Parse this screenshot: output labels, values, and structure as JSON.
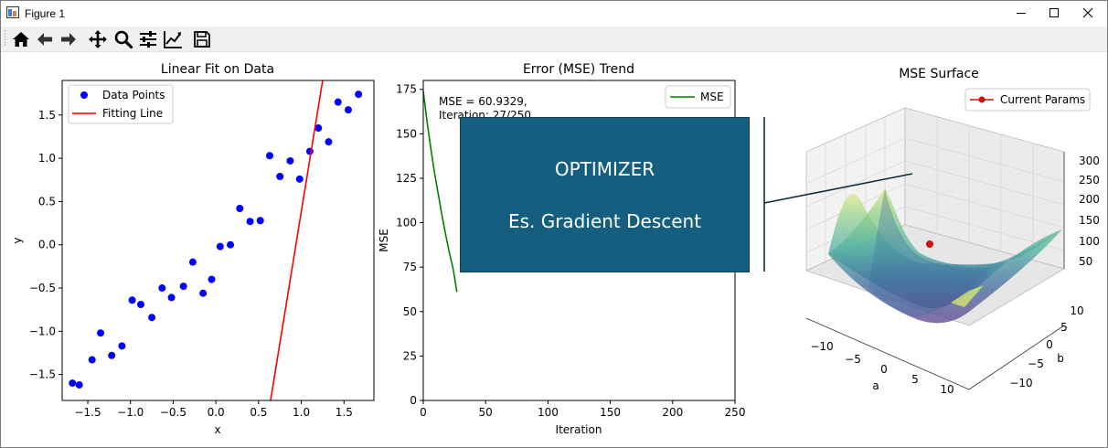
{
  "window": {
    "title": "Figure 1"
  },
  "toolbar": {
    "buttons": [
      {
        "icon": "home-icon"
      },
      {
        "icon": "back-arrow-icon"
      },
      {
        "icon": "forward-arrow-icon"
      },
      {
        "icon": "pan-icon"
      },
      {
        "icon": "zoom-icon"
      },
      {
        "icon": "configure-subplots-icon"
      },
      {
        "icon": "edit-axis-icon"
      },
      {
        "icon": "save-icon"
      }
    ]
  },
  "overlay": {
    "line1": "OPTIMIZER",
    "line2": "Es. Gradient Descent",
    "color": "#155e80"
  },
  "chart_data": [
    {
      "type": "scatter",
      "title": "Linear Fit on Data",
      "xlabel": "x",
      "ylabel": "y",
      "xlim": [
        -1.8,
        1.85
      ],
      "ylim": [
        -1.8,
        1.9
      ],
      "xticks": [
        "−1.5",
        "−1.0",
        "−0.5",
        "0.0",
        "0.5",
        "1.0",
        "1.5"
      ],
      "xtick_values": [
        -1.5,
        -1.0,
        -0.5,
        0.0,
        0.5,
        1.0,
        1.5
      ],
      "yticks": [
        "−1.5",
        "−1.0",
        "−0.5",
        "0.0",
        "0.5",
        "1.0",
        "1.5"
      ],
      "ytick_values": [
        -1.5,
        -1.0,
        -0.5,
        0.0,
        0.5,
        1.0,
        1.5
      ],
      "legend": [
        "Data Points",
        "Fitting Line"
      ],
      "legend_position": "top-left",
      "series": [
        {
          "name": "Data Points",
          "color": "#0000ff",
          "x": [
            -1.68,
            -1.6,
            -1.45,
            -1.35,
            -1.22,
            -1.1,
            -0.98,
            -0.88,
            -0.75,
            -0.63,
            -0.52,
            -0.38,
            -0.27,
            -0.15,
            -0.05,
            0.05,
            0.17,
            0.28,
            0.4,
            0.52,
            0.63,
            0.75,
            0.87,
            0.98,
            1.1,
            1.2,
            1.32,
            1.43,
            1.55,
            1.67
          ],
          "y": [
            -1.6,
            -1.62,
            -1.33,
            -1.02,
            -1.28,
            -1.17,
            -0.64,
            -0.69,
            -0.84,
            -0.5,
            -0.61,
            -0.48,
            -0.2,
            -0.56,
            -0.4,
            -0.02,
            0.0,
            0.42,
            0.27,
            0.28,
            1.03,
            0.79,
            0.97,
            0.76,
            1.08,
            1.35,
            1.19,
            1.65,
            1.56,
            1.74
          ]
        },
        {
          "name": "Fitting Line",
          "color": "#ff0000",
          "type": "line",
          "x": [
            0.64,
            1.25
          ],
          "y": [
            -1.8,
            1.9
          ]
        }
      ]
    },
    {
      "type": "line",
      "title": "Error (MSE) Trend",
      "xlabel": "Iteration",
      "ylabel": "MSE",
      "xlim": [
        0,
        250
      ],
      "ylim": [
        0,
        180
      ],
      "xticks": [
        "0",
        "50",
        "100",
        "150",
        "200",
        "250"
      ],
      "xtick_values": [
        0,
        50,
        100,
        150,
        200,
        250
      ],
      "yticks": [
        "0",
        "25",
        "50",
        "75",
        "100",
        "125",
        "150",
        "175"
      ],
      "ytick_values": [
        0,
        25,
        50,
        75,
        100,
        125,
        150,
        175
      ],
      "annotation": [
        "MSE = 60.9329,",
        "Iteration: 27/250"
      ],
      "legend": [
        "MSE"
      ],
      "legend_position": "top-right",
      "series": [
        {
          "name": "MSE",
          "color": "#008000",
          "x": [
            0,
            3,
            6,
            9,
            12,
            15,
            18,
            21,
            24,
            27
          ],
          "y": [
            174,
            157,
            142,
            128,
            116,
            104,
            93,
            83,
            74,
            61
          ]
        }
      ]
    },
    {
      "type": "surface",
      "title": "MSE Surface",
      "xlabel": "a",
      "ylabel": "b",
      "xticks": [
        "−10",
        "−5",
        "0",
        "5",
        "10"
      ],
      "yticks": [
        "−10",
        "−5",
        "0",
        "5",
        "10"
      ],
      "zticks": [
        "50",
        "100",
        "150",
        "200",
        "250",
        "300"
      ],
      "legend": [
        "Current Params"
      ],
      "legend_position": "top-right",
      "current_params_color": "#cc1111"
    }
  ]
}
